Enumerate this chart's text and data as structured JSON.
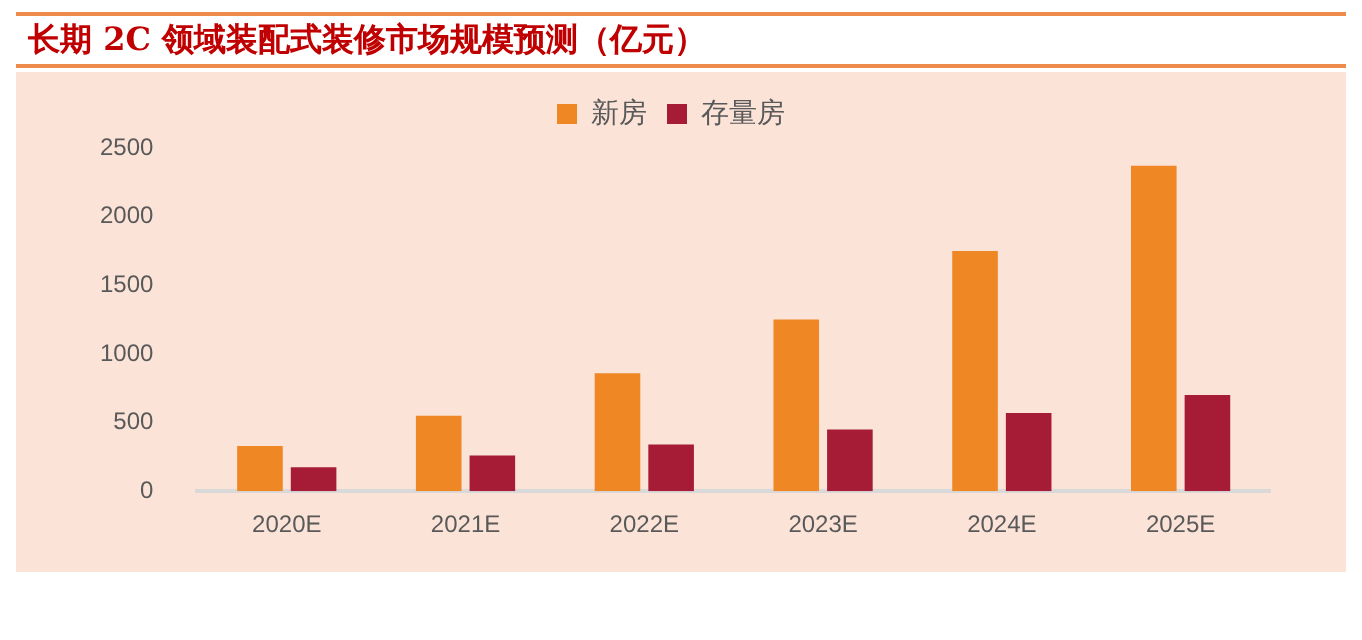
{
  "chart_data": {
    "type": "bar",
    "title": "长期 2C 领域装配式装修市场规模预测（亿元）",
    "categories": [
      "2020E",
      "2021E",
      "2022E",
      "2023E",
      "2024E",
      "2025E"
    ],
    "series": [
      {
        "name": "新房",
        "color": "#ee8724",
        "values": [
          330,
          550,
          860,
          1250,
          1750,
          2370
        ]
      },
      {
        "name": "存量房",
        "color": "#a61b36",
        "values": [
          175,
          260,
          340,
          450,
          570,
          700
        ]
      }
    ],
    "ylim": [
      0,
      2500
    ],
    "yticks": [
      0,
      500,
      1000,
      1500,
      2000,
      2500
    ],
    "grid": false,
    "legend": "top"
  }
}
